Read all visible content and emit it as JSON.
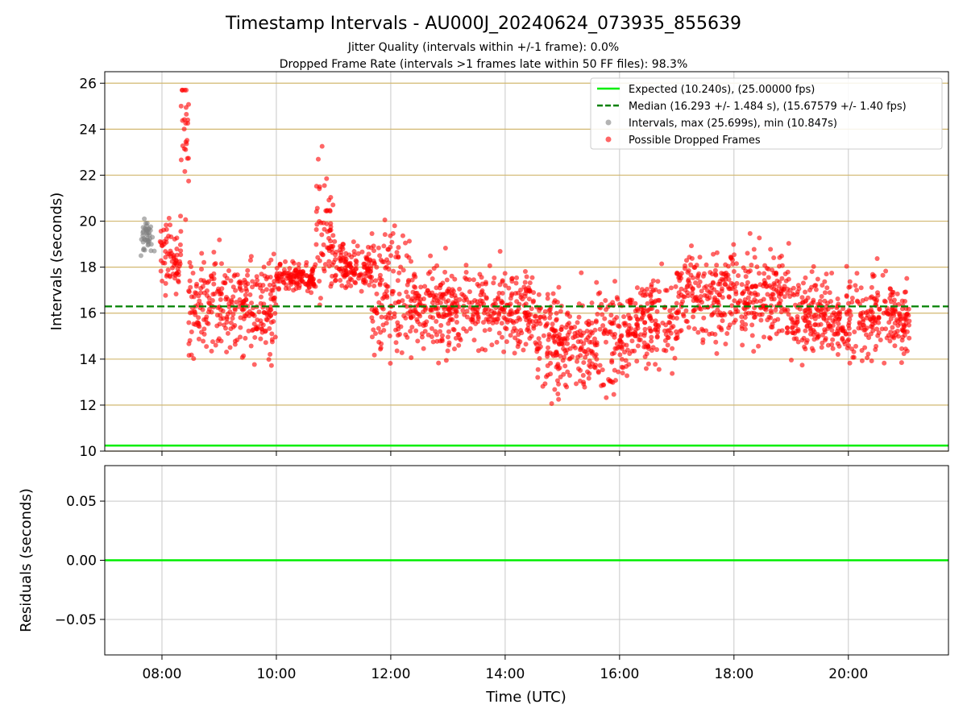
{
  "chart_data": {
    "title": "Timestamp Intervals - AU000J_20240624_073935_855639",
    "subtitles": [
      "Jitter Quality (intervals within +/-1 frame): 0.0%",
      "Dropped Frame Rate (intervals >1 frames late within 50 FF files): 98.3%"
    ],
    "colors": {
      "expected": "#00ee00",
      "median": "#008000",
      "intervals": "#808080",
      "dropped": "#ff0000",
      "hgrid": "#d2b870",
      "vgrid": "#c8c8c8"
    },
    "top": {
      "type": "scatter",
      "ylabel": "Intervals (seconds)",
      "ylim": [
        10,
        26.5
      ],
      "yticks": [
        10,
        12,
        14,
        16,
        18,
        20,
        22,
        24,
        26
      ],
      "xlim": [
        "07:00",
        "21:45"
      ],
      "expected_value": 10.24,
      "median_value": 16.293,
      "legend": [
        "Expected (10.240s), (25.00000 fps)",
        "Median (16.293 +/- 1.484 s), (15.67579 +/- 1.40 fps)",
        "Intervals, max (25.699s), min (10.847s)",
        "Possible Dropped Frames"
      ],
      "legend_position": "top-right",
      "intervals_points": [
        {
          "x": "07:40",
          "y": 19.5
        },
        {
          "x": "07:42",
          "y": 19.2
        },
        {
          "x": "07:44",
          "y": 19.8
        },
        {
          "x": "07:46",
          "y": 19.0
        },
        {
          "x": "07:38",
          "y": 18.5
        },
        {
          "x": "07:41",
          "y": 18.8
        },
        {
          "x": "07:48",
          "y": 19.6
        },
        {
          "x": "07:50",
          "y": 19.3
        },
        {
          "x": "07:43",
          "y": 19.9
        },
        {
          "x": "07:45",
          "y": 19.1
        },
        {
          "x": "07:52",
          "y": 18.7
        },
        {
          "x": "07:47",
          "y": 19.4
        }
      ],
      "dropped_segments": [
        {
          "start": "07:58",
          "end": "08:20",
          "center": 18.5,
          "spread": 1.0
        },
        {
          "start": "08:20",
          "end": "08:28",
          "center": 23.5,
          "spread": 2.2
        },
        {
          "start": "08:28",
          "end": "10:00",
          "center": 16.4,
          "spread": 1.4
        },
        {
          "start": "10:00",
          "end": "10:40",
          "center": 17.5,
          "spread": 0.4
        },
        {
          "start": "10:40",
          "end": "11:00",
          "center": 19.5,
          "spread": 2.0
        },
        {
          "start": "11:00",
          "end": "11:40",
          "center": 18.0,
          "spread": 0.6
        },
        {
          "start": "11:40",
          "end": "12:20",
          "center": 17.0,
          "spread": 1.8
        },
        {
          "start": "12:20",
          "end": "14:30",
          "center": 16.2,
          "spread": 1.2
        },
        {
          "start": "14:30",
          "end": "16:10",
          "center": 14.8,
          "spread": 1.4
        },
        {
          "start": "16:10",
          "end": "17:00",
          "center": 15.6,
          "spread": 1.2
        },
        {
          "start": "17:00",
          "end": "19:00",
          "center": 16.8,
          "spread": 1.3
        },
        {
          "start": "19:00",
          "end": "21:05",
          "center": 15.8,
          "spread": 1.2
        }
      ]
    },
    "bottom": {
      "type": "line",
      "ylabel": "Residuals (seconds)",
      "ylim": [
        -0.08,
        0.08
      ],
      "yticks": [
        0.05,
        0.0,
        -0.05
      ],
      "ytick_labels": [
        "0.05",
        "0.00",
        "−0.05"
      ],
      "residual_value": 0.0
    },
    "xlabel": "Time (UTC)",
    "xticks": [
      "08:00",
      "10:00",
      "12:00",
      "14:00",
      "16:00",
      "18:00",
      "20:00"
    ]
  }
}
